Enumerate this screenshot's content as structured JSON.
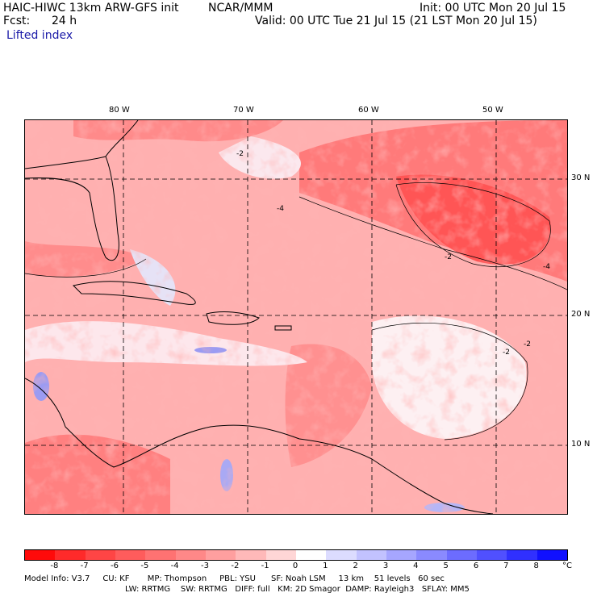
{
  "header": {
    "model": "HAIC-HIWC 13km ARW-GFS init",
    "org": "NCAR/MMM",
    "init": "Init: 00 UTC Mon 20 Jul 15",
    "fcst_label": "Fcst:",
    "fcst_value": "24 h",
    "valid": "Valid: 00 UTC Tue 21 Jul 15 (21 LST Mon 20 Jul 15)",
    "field": "Lifted index"
  },
  "map": {
    "lon_labels": [
      "80 W",
      "70 W",
      "60 W",
      "50 W"
    ],
    "lat_labels": [
      "30 N",
      "20 N",
      "10 N"
    ],
    "contour_labels": [
      "-2",
      "-4",
      "-2",
      "-2",
      "-4",
      "-2"
    ]
  },
  "colorbar": {
    "ticks": [
      "-8",
      "-7",
      "-6",
      "-5",
      "-4",
      "-3",
      "-2",
      "-1",
      "0",
      "1",
      "2",
      "3",
      "4",
      "5",
      "6",
      "7",
      "8"
    ],
    "unit": "°C",
    "colors": [
      "#ff0a0a",
      "#ff2a2a",
      "#ff4545",
      "#ff5c5c",
      "#ff7272",
      "#ff8888",
      "#ff9f9f",
      "#ffb9b9",
      "#ffd6d6",
      "#ffffff",
      "#dcdcff",
      "#c2c2ff",
      "#a6a6ff",
      "#8a8aff",
      "#6c6cff",
      "#5050ff",
      "#3030ff",
      "#1010ff"
    ]
  },
  "footer": {
    "line1": "Model Info: V3.7     CU: KF       MP: Thompson     PBL: YSU      SF: Noah LSM     13 km    51 levels   60 sec",
    "line2": "LW: RRTMG    SW: RRTMG   DIFF: full   KM: 2D Smagor  DAMP: Rayleigh3   SFLAY: MM5"
  }
}
